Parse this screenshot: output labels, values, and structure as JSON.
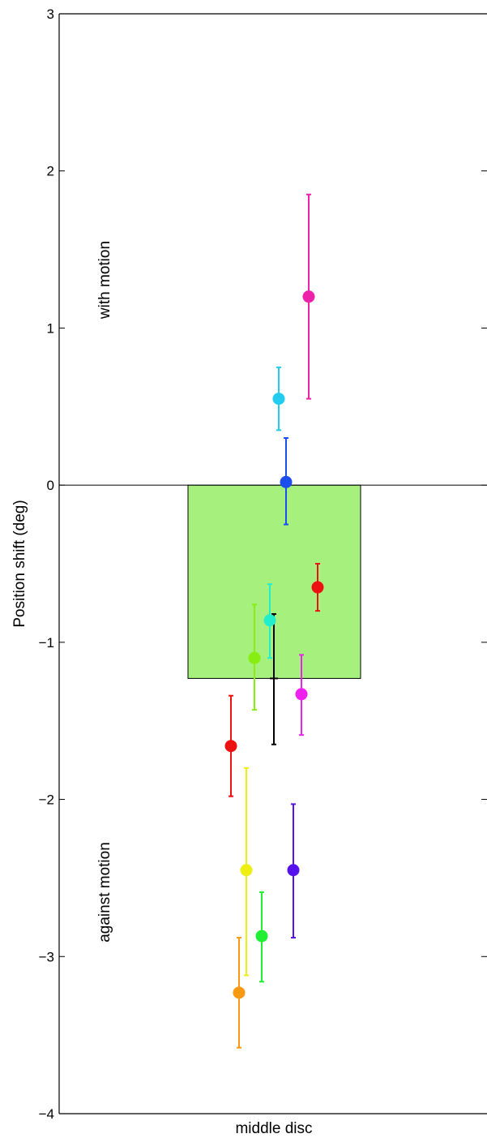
{
  "chart_data": {
    "type": "bar",
    "categories": [
      "middle disc"
    ],
    "xlabel": "middle disc",
    "ylabel": "Position shift (deg)",
    "ylim": [
      -4,
      3
    ],
    "yticks": [
      3,
      2,
      1,
      0,
      -1,
      -2,
      -3,
      -4
    ],
    "ytick_labels": [
      "3",
      "2",
      "1",
      "0",
      "−1",
      "−2",
      "−3",
      "−4"
    ],
    "bar": {
      "value": -1.23,
      "error_low": -1.65,
      "error_high": -0.82,
      "color": "#a6f07e"
    },
    "annotations": [
      "with motion",
      "against motion"
    ],
    "grid": false,
    "points": [
      {
        "value": 1.2,
        "low": 0.55,
        "high": 1.85,
        "color": "#ee22aa"
      },
      {
        "value": 0.55,
        "low": 0.35,
        "high": 0.75,
        "color": "#22ccee"
      },
      {
        "value": 0.02,
        "low": -0.25,
        "high": 0.3,
        "color": "#1a4fee"
      },
      {
        "value": -0.65,
        "low": -0.8,
        "high": -0.5,
        "color": "#ee1111"
      },
      {
        "value": -0.86,
        "low": -1.1,
        "high": -0.63,
        "color": "#22eecc"
      },
      {
        "value": -1.1,
        "low": -1.43,
        "high": -0.76,
        "color": "#88ee11"
      },
      {
        "value": -1.33,
        "low": -1.59,
        "high": -1.08,
        "color": "#ee22ee"
      },
      {
        "value": -1.66,
        "low": -1.98,
        "high": -1.34,
        "color": "#ee1111"
      },
      {
        "value": -2.45,
        "low": -3.12,
        "high": -1.8,
        "color": "#eeee11"
      },
      {
        "value": -2.45,
        "low": -2.88,
        "high": -2.03,
        "color": "#5511ee"
      },
      {
        "value": -2.87,
        "low": -3.16,
        "high": -2.59,
        "color": "#22ee33"
      },
      {
        "value": -3.23,
        "low": -3.58,
        "high": -2.88,
        "color": "#f79a11"
      }
    ]
  }
}
